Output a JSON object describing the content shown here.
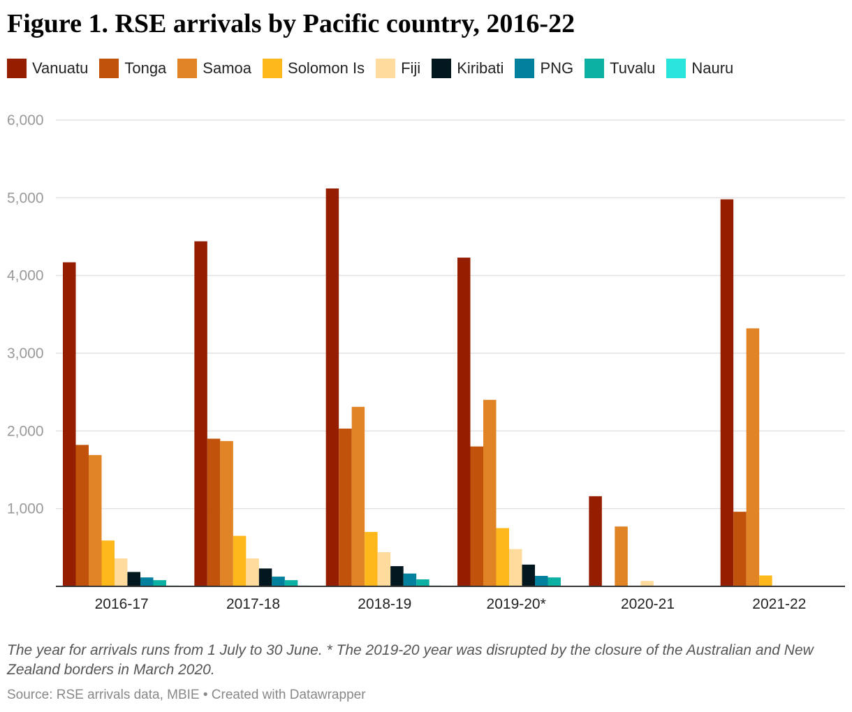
{
  "title": "Figure 1. RSE arrivals by Pacific country, 2016-22",
  "notes": "The year for arrivals runs from 1 July to 30 June. * The 2019-20 year was disrupted by the closure of the Australian and New Zealand borders in March 2020.",
  "source": "Source: RSE arrivals data, MBIE • Created with Datawrapper",
  "chart_data": {
    "type": "bar",
    "title": "Figure 1. RSE arrivals by Pacific country, 2016-22",
    "categories": [
      "2016-17",
      "2017-18",
      "2018-19",
      "2019-20*",
      "2020-21",
      "2021-22"
    ],
    "ylim": [
      0,
      6000
    ],
    "yticks": [
      1000,
      2000,
      3000,
      4000,
      5000,
      6000
    ],
    "ytick_labels": [
      "1,000",
      "2,000",
      "3,000",
      "4,000",
      "5,000",
      "6,000"
    ],
    "grid": true,
    "legend_position": "top",
    "series": [
      {
        "name": "Vanuatu",
        "color": "#961e00",
        "values": [
          4170,
          4440,
          5120,
          4230,
          1160,
          4980
        ]
      },
      {
        "name": "Tonga",
        "color": "#c0520c",
        "values": [
          1820,
          1900,
          2030,
          1800,
          0,
          960
        ]
      },
      {
        "name": "Samoa",
        "color": "#e08425",
        "values": [
          1690,
          1870,
          2310,
          2400,
          770,
          3320
        ]
      },
      {
        "name": "Solomon Is",
        "color": "#ffb81c",
        "values": [
          590,
          650,
          700,
          750,
          0,
          140
        ]
      },
      {
        "name": "Fiji",
        "color": "#ffdc9e",
        "values": [
          360,
          360,
          440,
          480,
          70,
          0
        ]
      },
      {
        "name": "Kiribati",
        "color": "#03171f",
        "values": [
          185,
          230,
          260,
          280,
          0,
          0
        ]
      },
      {
        "name": "PNG",
        "color": "#02809e",
        "values": [
          115,
          125,
          165,
          135,
          0,
          0
        ]
      },
      {
        "name": "Tuvalu",
        "color": "#0cb1a4",
        "values": [
          80,
          80,
          90,
          115,
          0,
          0
        ]
      },
      {
        "name": "Nauru",
        "color": "#2ae5db",
        "values": [
          10,
          10,
          10,
          0,
          0,
          0
        ]
      }
    ]
  }
}
